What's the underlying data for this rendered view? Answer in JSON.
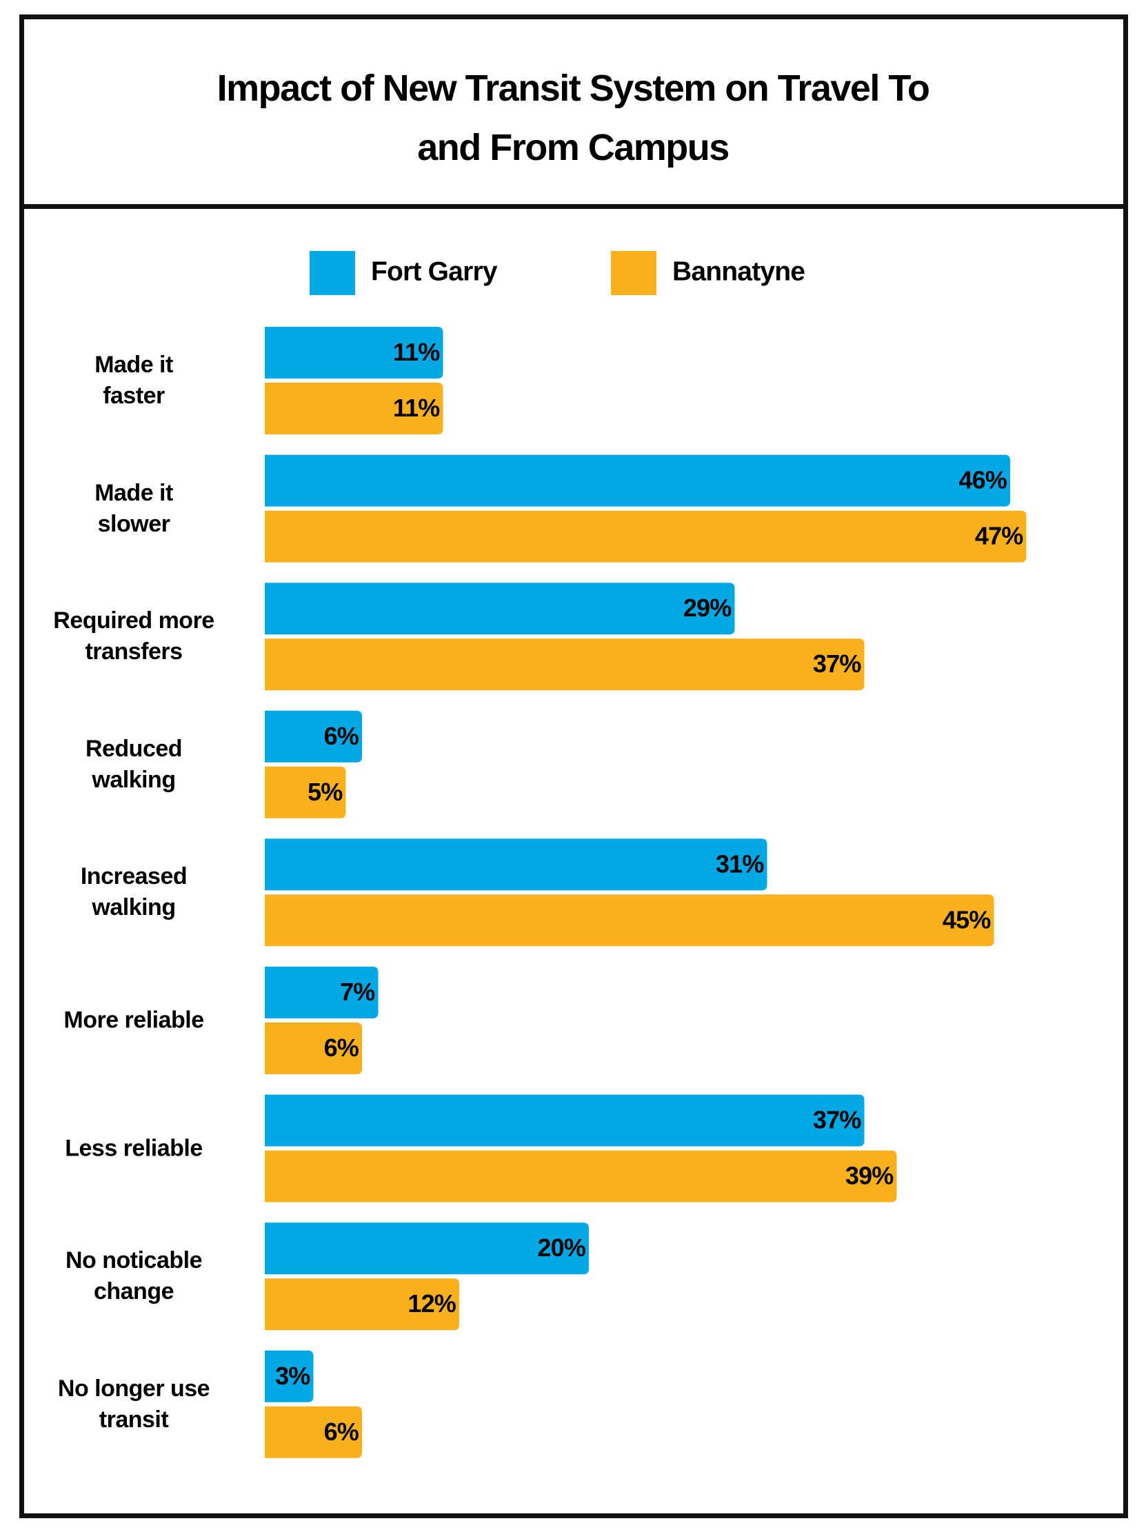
{
  "chart_data": {
    "type": "bar",
    "orientation": "horizontal",
    "title": "Impact of New Transit System on Travel To\nand From Campus",
    "categories": [
      "Made it\nfaster",
      "Made it\nslower",
      "Required more\ntransfers",
      "Reduced\nwalking",
      "Increased\nwalking",
      "More reliable",
      "Less reliable",
      "No noticable\nchange",
      "No longer use\ntransit"
    ],
    "series": [
      {
        "name": "Fort Garry",
        "color": "#00a9e6",
        "values": [
          11,
          46,
          29,
          6,
          31,
          7,
          37,
          20,
          3
        ],
        "value_labels": [
          "11%",
          "46%",
          "29%",
          "6%",
          "31%",
          "7%",
          "37%",
          "20%",
          "3%"
        ]
      },
      {
        "name": "Bannatyne",
        "color": "#f8b11c",
        "values": [
          11,
          47,
          37,
          5,
          45,
          6,
          39,
          12,
          6
        ],
        "value_labels": [
          "11%",
          "47%",
          "37%",
          "5%",
          "45%",
          "6%",
          "39%",
          "12%",
          "6%"
        ]
      }
    ]
  }
}
